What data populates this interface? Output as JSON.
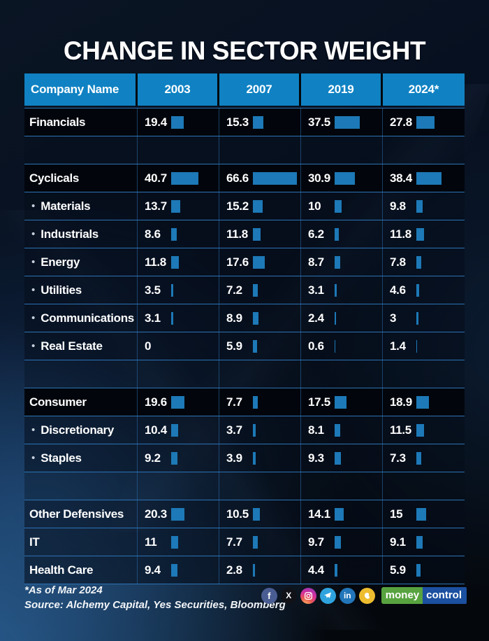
{
  "title": "CHANGE IN SECTOR WEIGHT",
  "table": {
    "columns": [
      "Company Name",
      "2003",
      "2007",
      "2019",
      "2024*"
    ],
    "rows": [
      {
        "type": "category",
        "label": "Financials",
        "values": [
          19.4,
          15.3,
          37.5,
          27.8
        ]
      },
      {
        "type": "spacer",
        "label": ""
      },
      {
        "type": "category",
        "label": "Cyclicals",
        "values": [
          40.7,
          66.6,
          30.9,
          38.4
        ]
      },
      {
        "type": "sub",
        "label": "Materials",
        "values": [
          13.7,
          15.2,
          10,
          9.8
        ]
      },
      {
        "type": "sub",
        "label": "Industrials",
        "values": [
          8.6,
          11.8,
          6.2,
          11.8
        ]
      },
      {
        "type": "sub",
        "label": "Energy",
        "values": [
          11.8,
          17.6,
          8.7,
          7.8
        ]
      },
      {
        "type": "sub",
        "label": "Utilities",
        "values": [
          3.5,
          7.2,
          3.1,
          4.6
        ]
      },
      {
        "type": "sub",
        "label": "Communications",
        "values": [
          3.1,
          8.9,
          2.4,
          3
        ]
      },
      {
        "type": "sub",
        "label": "Real Estate",
        "values": [
          0,
          5.9,
          0.6,
          1.4
        ]
      },
      {
        "type": "spacer",
        "label": ""
      },
      {
        "type": "category",
        "label": "Consumer",
        "values": [
          19.6,
          7.7,
          17.5,
          18.9
        ]
      },
      {
        "type": "sub",
        "label": "Discretionary",
        "values": [
          10.4,
          3.7,
          8.1,
          11.5
        ]
      },
      {
        "type": "sub",
        "label": "Staples",
        "values": [
          9.2,
          3.9,
          9.3,
          7.3
        ]
      },
      {
        "type": "spacer",
        "label": ""
      },
      {
        "type": "plain",
        "label": "Other Defensives",
        "values": [
          20.3,
          10.5,
          14.1,
          15
        ]
      },
      {
        "type": "plain",
        "label": "IT",
        "values": [
          11,
          7.7,
          9.7,
          9.1
        ]
      },
      {
        "type": "plain",
        "label": "Health Care",
        "values": [
          9.4,
          2.8,
          4.4,
          5.9
        ]
      }
    ]
  },
  "footer": {
    "note": "*As of Mar 2024",
    "source": "Source: Alchemy Capital, Yes Securities, Bloomberg"
  },
  "social": {
    "facebook_label": "f",
    "x_label": "X",
    "linkedin_label": "in"
  },
  "logo": {
    "money": "money",
    "control": "control"
  },
  "colors": {
    "header_blue": "#1082c3",
    "bar_blue": "#1d79b7",
    "grid_line": "#2d73b4",
    "category_row_bg": "#02060c",
    "money_green": "#58a33f",
    "control_blue": "#1c50a0",
    "facebook_blue": "#4a5d92",
    "telegram_blue": "#2fa3dd",
    "linkedin_blue": "#2276b9",
    "koo_yellow": "#eebd2f"
  },
  "chart_data": {
    "type": "table",
    "title": "CHANGE IN SECTOR WEIGHT",
    "note": "Bars inside cells are proportional to sector weight values",
    "columns": [
      "2003",
      "2007",
      "2019",
      "2024*"
    ],
    "rows": [
      {
        "label": "Financials",
        "group": true,
        "values": [
          19.4,
          15.3,
          37.5,
          27.8
        ]
      },
      {
        "label": "Cyclicals",
        "group": true,
        "values": [
          40.7,
          66.6,
          30.9,
          38.4
        ]
      },
      {
        "label": "Materials",
        "parent": "Cyclicals",
        "values": [
          13.7,
          15.2,
          10,
          9.8
        ]
      },
      {
        "label": "Industrials",
        "parent": "Cyclicals",
        "values": [
          8.6,
          11.8,
          6.2,
          11.8
        ]
      },
      {
        "label": "Energy",
        "parent": "Cyclicals",
        "values": [
          11.8,
          17.6,
          8.7,
          7.8
        ]
      },
      {
        "label": "Utilities",
        "parent": "Cyclicals",
        "values": [
          3.5,
          7.2,
          3.1,
          4.6
        ]
      },
      {
        "label": "Communications",
        "parent": "Cyclicals",
        "values": [
          3.1,
          8.9,
          2.4,
          3
        ]
      },
      {
        "label": "Real Estate",
        "parent": "Cyclicals",
        "values": [
          0,
          5.9,
          0.6,
          1.4
        ]
      },
      {
        "label": "Consumer",
        "group": true,
        "values": [
          19.6,
          7.7,
          17.5,
          18.9
        ]
      },
      {
        "label": "Discretionary",
        "parent": "Consumer",
        "values": [
          10.4,
          3.7,
          8.1,
          11.5
        ]
      },
      {
        "label": "Staples",
        "parent": "Consumer",
        "values": [
          9.2,
          3.9,
          9.3,
          7.3
        ]
      },
      {
        "label": "Other Defensives",
        "group": false,
        "values": [
          20.3,
          10.5,
          14.1,
          15
        ]
      },
      {
        "label": "IT",
        "group": false,
        "values": [
          11,
          7.7,
          9.7,
          9.1
        ]
      },
      {
        "label": "Health Care",
        "group": false,
        "values": [
          9.4,
          2.8,
          4.4,
          5.9
        ]
      }
    ]
  }
}
